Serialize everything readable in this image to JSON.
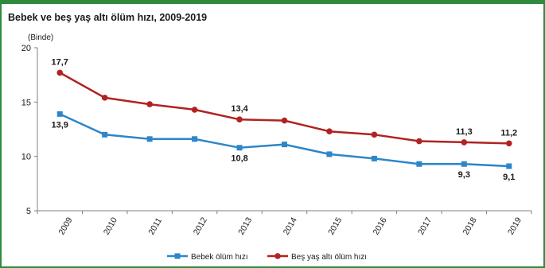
{
  "chart_data": {
    "type": "line",
    "title": "Bebek ve beş yaş altı ölüm hızı, 2009-2019",
    "unit_label": "(Binde)",
    "x": [
      "2009",
      "2010",
      "2011",
      "2012",
      "2013",
      "2014",
      "2015",
      "2016",
      "2017",
      "2018",
      "2019"
    ],
    "ylim": [
      5,
      20
    ],
    "yticks": [
      5,
      10,
      15,
      20
    ],
    "grid": false,
    "legend_position": "bottom",
    "series": [
      {
        "name": "Bebek ölüm hızı",
        "color": "#2e86c8",
        "marker": "square",
        "values": [
          13.9,
          12.0,
          11.6,
          11.6,
          10.8,
          11.1,
          10.2,
          9.8,
          9.3,
          9.3,
          9.1
        ],
        "labels": [
          {
            "index": 0,
            "text": "13,9",
            "position": "below"
          },
          {
            "index": 4,
            "text": "10,8",
            "position": "below"
          },
          {
            "index": 9,
            "text": "9,3",
            "position": "below"
          },
          {
            "index": 10,
            "text": "9,1",
            "position": "below"
          }
        ]
      },
      {
        "name": "Beş yaş altı ölüm hızı",
        "color": "#b22222",
        "marker": "circle",
        "values": [
          17.7,
          15.4,
          14.8,
          14.3,
          13.4,
          13.3,
          12.3,
          12.0,
          11.4,
          11.3,
          11.2
        ],
        "labels": [
          {
            "index": 0,
            "text": "17,7",
            "position": "above"
          },
          {
            "index": 4,
            "text": "13,4",
            "position": "above"
          },
          {
            "index": 9,
            "text": "11,3",
            "position": "above"
          },
          {
            "index": 10,
            "text": "11,2",
            "position": "above"
          }
        ]
      }
    ]
  }
}
